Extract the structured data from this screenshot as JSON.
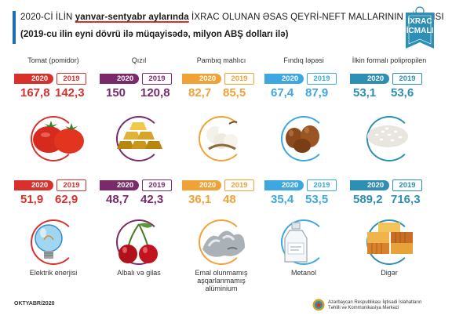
{
  "header": {
    "line1_prefix": "2020-Cİ İLİN ",
    "line1_highlight": "yanvar-sentyabr aylarında",
    "line1_suffix": " İXRAC OLUNAN ƏSAS QEYRİ-NEFT MALLARININ SİYAHISI",
    "line2": "(2019-cu ilin eyni dövrü ilə müqayisədə, milyon ABŞ dolları ilə)"
  },
  "badge": {
    "line1": "İXRAC",
    "line2": "İCMALI"
  },
  "year_a": "2020",
  "year_b": "2019",
  "colors": {
    "red": "#d8312c",
    "purple": "#7a2a6b",
    "orange": "#f0a236",
    "blue": "#3da8e0",
    "teal": "#2d8fb3"
  },
  "items": [
    {
      "name": "Tomat (pomidor)",
      "v2020": "167,8",
      "v2019": "142,3",
      "icon": "tomato-icon"
    },
    {
      "name": "Qızıl",
      "v2020": "150",
      "v2019": "120,8",
      "icon": "gold-bars-icon"
    },
    {
      "name": "Pambıq mahlıcı",
      "v2020": "82,7",
      "v2019": "85,5",
      "icon": "cotton-icon"
    },
    {
      "name": "Fındıq ləpəsi",
      "v2020": "67,4",
      "v2019": "87,9",
      "icon": "hazelnut-icon"
    },
    {
      "name": "İlkin formalı polipropilen",
      "v2020": "53,1",
      "v2019": "53,6",
      "icon": "polypropylene-icon"
    },
    {
      "name": "Elektrik enerjisi",
      "v2020": "51,9",
      "v2019": "62,9",
      "icon": "lightbulb-icon"
    },
    {
      "name": "Albalı və gilas",
      "v2020": "48,7",
      "v2019": "42,3",
      "icon": "cherry-icon"
    },
    {
      "name": "Emal olunmamış aşqarlanmamış alüminium",
      "v2020": "36,1",
      "v2019": "48",
      "icon": "aluminium-icon"
    },
    {
      "name": "Metanol",
      "v2020": "35,4",
      "v2019": "53,5",
      "icon": "methanol-bottle-icon"
    },
    {
      "name": "Digər",
      "v2020": "589,2",
      "v2019": "716,3",
      "icon": "containers-icon"
    }
  ],
  "footer": {
    "date": "OKTYABR/2020",
    "org_line1": "Azərbaycan Respublikası İqtisadi İslahatların",
    "org_line2": "Təhlili və Kommunikasiya Mərkəzi"
  }
}
